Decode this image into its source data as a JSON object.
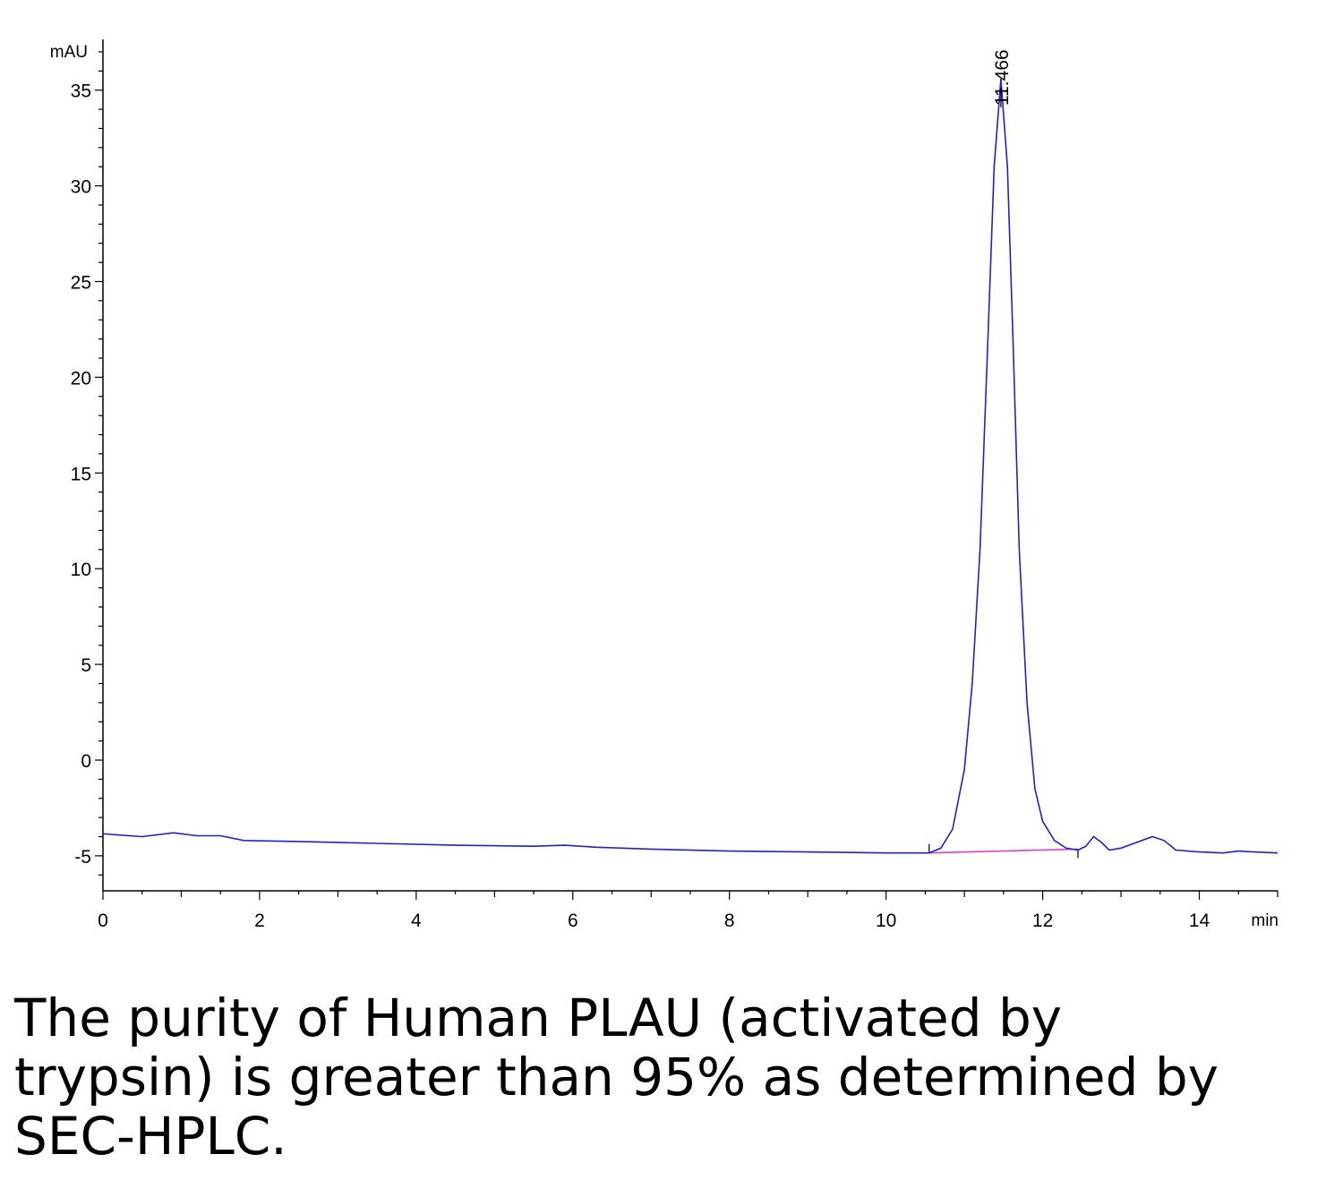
{
  "chart_data": {
    "type": "line",
    "xlabel": "min",
    "ylabel": "mAU",
    "xlim": [
      0,
      15
    ],
    "ylim": [
      -7,
      37
    ],
    "x_ticks": [
      "0",
      "2",
      "4",
      "6",
      "8",
      "10",
      "12",
      "14"
    ],
    "y_ticks": [
      "-5",
      "0",
      "5",
      "10",
      "15",
      "20",
      "25",
      "30",
      "35"
    ],
    "grid": false,
    "peak_annotation": {
      "label": "11.466",
      "x": 11.466,
      "y": 35.6
    },
    "baseline_integration": {
      "x_start": 10.55,
      "x_end": 12.45,
      "y_start": -4.85,
      "y_end": -4.65
    },
    "series": [
      {
        "color": "#2020d0",
        "points": [
          [
            0,
            -3.85
          ],
          [
            0.5,
            -4.0
          ],
          [
            0.9,
            -3.8
          ],
          [
            1.2,
            -3.95
          ],
          [
            1.5,
            -3.95
          ],
          [
            1.8,
            -4.2
          ],
          [
            2.5,
            -4.25
          ],
          [
            3.5,
            -4.35
          ],
          [
            4.5,
            -4.45
          ],
          [
            5.5,
            -4.5
          ],
          [
            5.9,
            -4.45
          ],
          [
            6.3,
            -4.55
          ],
          [
            7.0,
            -4.65
          ],
          [
            8.0,
            -4.75
          ],
          [
            9.0,
            -4.8
          ],
          [
            10.0,
            -4.85
          ],
          [
            10.55,
            -4.85
          ],
          [
            10.7,
            -4.6
          ],
          [
            10.85,
            -3.6
          ],
          [
            11.0,
            -0.5
          ],
          [
            11.1,
            4.0
          ],
          [
            11.2,
            11.0
          ],
          [
            11.3,
            22.0
          ],
          [
            11.38,
            31.0
          ],
          [
            11.466,
            35.6
          ],
          [
            11.55,
            31.0
          ],
          [
            11.62,
            22.0
          ],
          [
            11.7,
            11.0
          ],
          [
            11.8,
            3.0
          ],
          [
            11.9,
            -1.5
          ],
          [
            12.0,
            -3.2
          ],
          [
            12.15,
            -4.2
          ],
          [
            12.3,
            -4.6
          ],
          [
            12.45,
            -4.7
          ],
          [
            12.55,
            -4.5
          ],
          [
            12.65,
            -4.0
          ],
          [
            12.75,
            -4.3
          ],
          [
            12.85,
            -4.7
          ],
          [
            13.0,
            -4.6
          ],
          [
            13.2,
            -4.3
          ],
          [
            13.4,
            -4.0
          ],
          [
            13.55,
            -4.2
          ],
          [
            13.7,
            -4.7
          ],
          [
            14.0,
            -4.8
          ],
          [
            14.3,
            -4.85
          ],
          [
            14.5,
            -4.75
          ],
          [
            14.7,
            -4.8
          ],
          [
            15.0,
            -4.85
          ]
        ]
      }
    ],
    "colors": {
      "trace": "#2020d0",
      "baseline": "#e040d0",
      "axis": "#000000"
    }
  },
  "caption": "The purity of Human PLAU (activated by trypsin) is greater than 95% as determined by SEC-HPLC."
}
